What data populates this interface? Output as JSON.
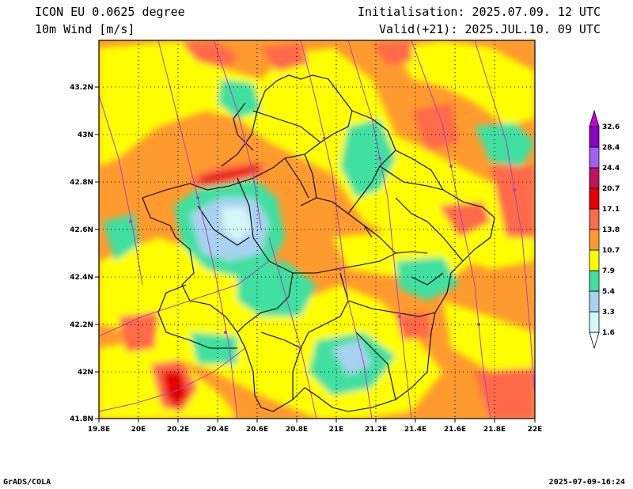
{
  "header": {
    "model": "ICON EU 0.0625 degree",
    "variable": "10m Wind [m/s]",
    "init": "Initialisation: 2025.07.09. 12 UTC",
    "valid": "Valid(+21): 2025.JUL.10. 09 UTC"
  },
  "footer": {
    "left": "GrADS/COLA",
    "right": "2025-07-09-16:24"
  },
  "map": {
    "lon_range": [
      19.8,
      22.0
    ],
    "lat_range": [
      41.8,
      43.4
    ],
    "lon_ticks": [
      "19.8E",
      "20E",
      "20.2E",
      "20.4E",
      "20.6E",
      "20.8E",
      "21E",
      "21.2E",
      "21.4E",
      "21.6E",
      "21.8E",
      "22E"
    ],
    "lat_ticks": [
      "41.8N",
      "42N",
      "42.2N",
      "42.4N",
      "42.6N",
      "42.8N",
      "43N",
      "43.2N"
    ]
  },
  "colorbar": {
    "levels": [
      "1.6",
      "3.3",
      "5.4",
      "7.9",
      "10.7",
      "13.8",
      "17.1",
      "20.7",
      "24.4",
      "28.4",
      "32.6"
    ],
    "colors": [
      "#d4f7f7",
      "#a8d2f0",
      "#6fb4ec",
      "#40e0a0",
      "#ffff00",
      "#ff9b2e",
      "#ff6a4a",
      "#e60000",
      "#c0145a",
      "#a060f0",
      "#8a00c8",
      "#c800d2"
    ],
    "units": "m/s",
    "palette_note": "colors: below 1.6 white-cyan, 1.6-3.3 light cyan, 3.3-5.4 light blue, 5.4-7.9 green, 7.9-10.7 yellow, 10.7-13.8 orange, 13.8-17.1 salmon, 17.1-20.7 red, 20.7-24.4 dark pink, 24.4-28.4 violet, 28.4-32.6 purple"
  }
}
